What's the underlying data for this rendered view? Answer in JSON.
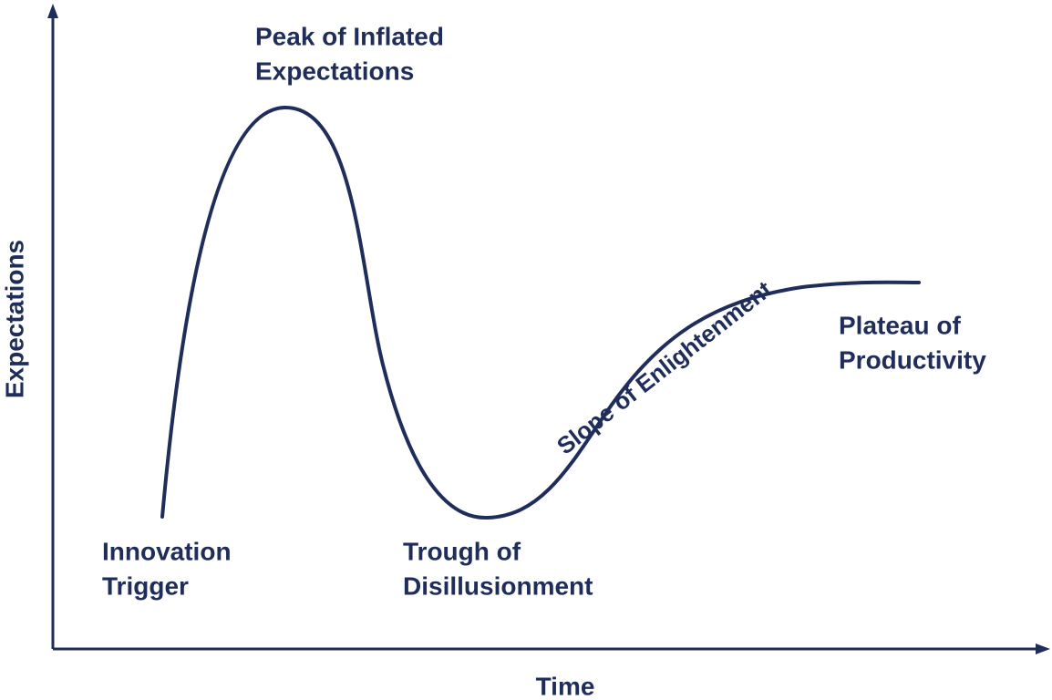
{
  "axes": {
    "x_label": "Time",
    "y_label": "Expectations"
  },
  "phases": [
    {
      "lines": [
        "Innovation",
        "Trigger"
      ]
    },
    {
      "lines": [
        "Peak of Inflated",
        "Expectations"
      ]
    },
    {
      "lines": [
        "Trough of",
        "Disillusionment"
      ]
    },
    {
      "lines": [
        "Slope of Enlightenment"
      ]
    },
    {
      "lines": [
        "Plateau of",
        "Productivity"
      ]
    }
  ]
}
